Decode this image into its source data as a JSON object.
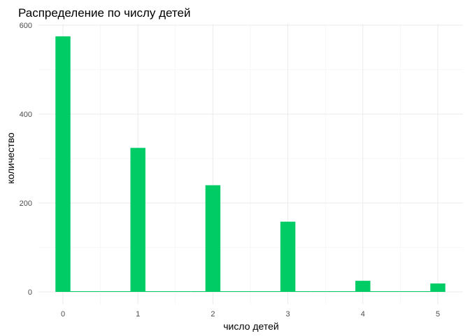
{
  "chart_data": {
    "type": "bar",
    "title": "Распределение по числу детей",
    "xlabel": "число детей",
    "ylabel": "количество",
    "x_ticks": [
      "0",
      "1",
      "2",
      "3",
      "4",
      "5"
    ],
    "y_ticks": [
      "0",
      "200",
      "400",
      "600"
    ],
    "xlim": [
      -0.2,
      5.2
    ],
    "ylim": [
      0,
      600
    ],
    "grid": true,
    "bar_color": "#00cc66",
    "bins": [
      {
        "x": 0,
        "count": 575
      },
      {
        "x": 0.2,
        "count": 0
      },
      {
        "x": 0.4,
        "count": 0
      },
      {
        "x": 0.6,
        "count": 0
      },
      {
        "x": 0.8,
        "count": 0
      },
      {
        "x": 1,
        "count": 324
      },
      {
        "x": 1.2,
        "count": 0
      },
      {
        "x": 1.4,
        "count": 0
      },
      {
        "x": 1.6,
        "count": 0
      },
      {
        "x": 1.8,
        "count": 0
      },
      {
        "x": 2,
        "count": 240
      },
      {
        "x": 2.2,
        "count": 0
      },
      {
        "x": 2.4,
        "count": 0
      },
      {
        "x": 2.6,
        "count": 0
      },
      {
        "x": 2.8,
        "count": 0
      },
      {
        "x": 3,
        "count": 158
      },
      {
        "x": 3.2,
        "count": 0
      },
      {
        "x": 3.4,
        "count": 0
      },
      {
        "x": 3.6,
        "count": 0
      },
      {
        "x": 3.8,
        "count": 0
      },
      {
        "x": 4,
        "count": 25
      },
      {
        "x": 4.2,
        "count": 0
      },
      {
        "x": 4.4,
        "count": 0
      },
      {
        "x": 4.6,
        "count": 0
      },
      {
        "x": 4.8,
        "count": 0
      },
      {
        "x": 5,
        "count": 19
      }
    ]
  }
}
